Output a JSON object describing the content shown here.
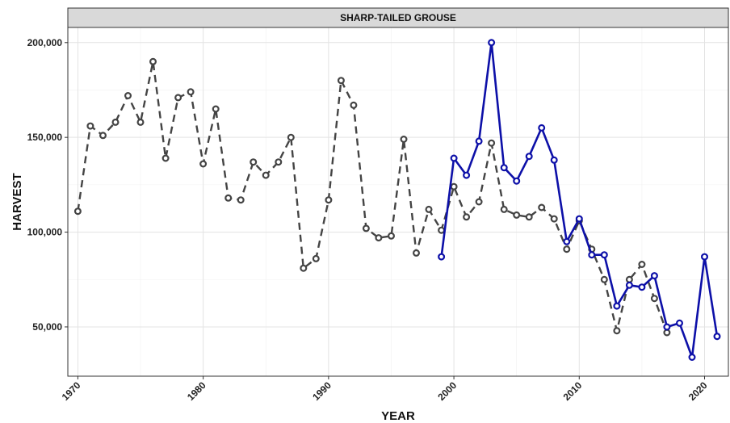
{
  "chart_data": {
    "type": "line",
    "title": "SHARP-TAILED GROUSE",
    "xlabel": "YEAR",
    "ylabel": "HARVEST",
    "xlim": [
      1969.2,
      2021.9
    ],
    "ylim": [
      24000,
      208000
    ],
    "x_ticks": [
      1970,
      1980,
      1990,
      2000,
      2010,
      2020
    ],
    "y_ticks": [
      50000,
      100000,
      150000,
      200000
    ],
    "x_tick_labels": [
      "1970",
      "1980",
      "1990",
      "2000",
      "2010",
      "2020"
    ],
    "y_tick_labels": [
      "50,000",
      "100,000",
      "150,000",
      "200,000"
    ],
    "grid": true,
    "legend": "none",
    "series": [
      {
        "color": "#444444",
        "line_style": "dashed",
        "x": [
          1970,
          1971,
          1972,
          1973,
          1974,
          1975,
          1976,
          1977,
          1978,
          1979,
          1980,
          1981,
          1982,
          1983,
          1984,
          1985,
          1986,
          1987,
          1988,
          1989,
          1990,
          1991,
          1992,
          1993,
          1994,
          1995,
          1996,
          1997,
          1998,
          1999,
          2000,
          2001,
          2002,
          2003,
          2004,
          2005,
          2006,
          2007,
          2008,
          2009,
          2010,
          2011,
          2012,
          2013,
          2014,
          2015,
          2016,
          2017
        ],
        "y": [
          111000,
          156000,
          151000,
          158000,
          172000,
          158000,
          190000,
          139000,
          171000,
          174000,
          136000,
          165000,
          118000,
          117000,
          137000,
          130000,
          137000,
          150000,
          81000,
          86000,
          117000,
          180000,
          167000,
          102000,
          97000,
          98000,
          149000,
          89000,
          112000,
          101000,
          124000,
          108000,
          116000,
          147000,
          112000,
          109000,
          108000,
          113000,
          107000,
          91000,
          106000,
          91000,
          75000,
          48000,
          75000,
          83000,
          65000,
          47000
        ]
      },
      {
        "color": "#0d10a8",
        "line_style": "solid",
        "x": [
          1999,
          2000,
          2001,
          2002,
          2003,
          2004,
          2005,
          2006,
          2007,
          2008,
          2009,
          2010,
          2011,
          2012,
          2013,
          2014,
          2015,
          2016,
          2017,
          2018,
          2019,
          2020,
          2021
        ],
        "y": [
          87000,
          139000,
          130000,
          148000,
          200000,
          134000,
          127000,
          140000,
          155000,
          138000,
          95000,
          107000,
          88000,
          88000,
          61000,
          72000,
          71000,
          77000,
          50000,
          52000,
          34000,
          87000,
          45000
        ]
      }
    ]
  }
}
